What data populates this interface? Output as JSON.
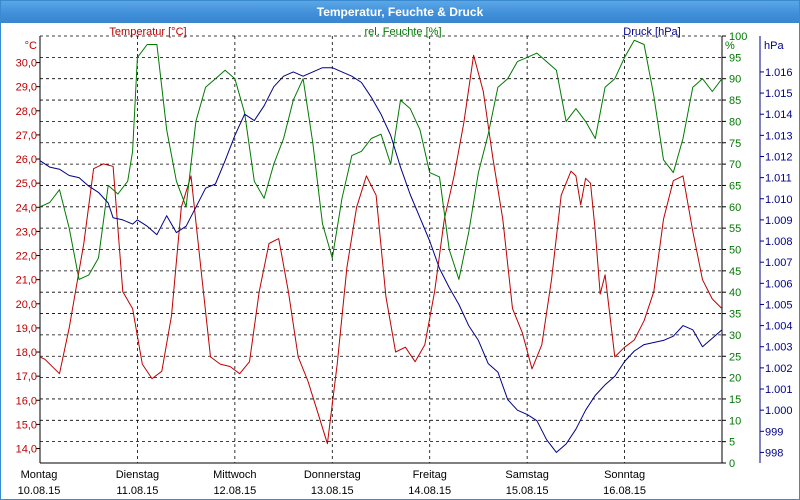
{
  "window": {
    "title": "Temperatur, Feuchte & Druck"
  },
  "colors": {
    "temperature": "#c00000",
    "humidity": "#007a00",
    "pressure": "#00008b",
    "title_bar": "#3f8ed8",
    "grid": "#000000"
  },
  "chart_data": {
    "type": "line",
    "title": "Temperatur, Feuchte & Druck",
    "grid": "on (dashed)",
    "x_range": [
      "10.08.15 00:00",
      "17.08.15 00:00"
    ],
    "x_ticks": [
      {
        "day": "Montag",
        "date": "10.08.15"
      },
      {
        "day": "Dienstag",
        "date": "11.08.15"
      },
      {
        "day": "Mittwoch",
        "date": "12.08.15"
      },
      {
        "day": "Donnerstag",
        "date": "13.08.15"
      },
      {
        "day": "Freitag",
        "date": "14.08.15"
      },
      {
        "day": "Samstag",
        "date": "15.08.15"
      },
      {
        "day": "Sonntag",
        "date": "16.08.15"
      }
    ],
    "axes": {
      "temperature": {
        "label": "Temperatur [°C]",
        "unit": "°C",
        "side": "left",
        "range": [
          13.4,
          31.1
        ],
        "ticks": [
          "14,0",
          "15,0",
          "16,0",
          "17,0",
          "18,0",
          "19,0",
          "20,0",
          "21,0",
          "22,0",
          "23,0",
          "24,0",
          "25,0",
          "26,0",
          "27,0",
          "28,0",
          "29,0",
          "30,0"
        ]
      },
      "humidity": {
        "label": "rel. Feuchte [%]",
        "unit": "%",
        "side": "right",
        "range": [
          0,
          100
        ],
        "ticks": [
          "0",
          "5",
          "10",
          "15",
          "20",
          "25",
          "30",
          "35",
          "40",
          "45",
          "50",
          "55",
          "60",
          "65",
          "70",
          "75",
          "80",
          "85",
          "90",
          "95",
          "100"
        ]
      },
      "pressure": {
        "label": "Druck [hPa]",
        "unit": "hPa",
        "side": "right",
        "range": [
          997.5,
          1017.7
        ],
        "ticks": [
          "998",
          "999",
          "1.000",
          "1.001",
          "1.002",
          "1.003",
          "1.004",
          "1.005",
          "1.006",
          "1.007",
          "1.008",
          "1.009",
          "1.010",
          "1.011",
          "1.012",
          "1.013",
          "1.014",
          "1.015",
          "1.016"
        ]
      }
    },
    "series": [
      {
        "name": "Temperatur [°C]",
        "axis": "temperature",
        "x_days": [
          0,
          0.05,
          0.2,
          0.3,
          0.45,
          0.55,
          0.65,
          0.75,
          0.85,
          0.95,
          1.05,
          1.15,
          1.25,
          1.35,
          1.45,
          1.55,
          1.65,
          1.75,
          1.85,
          1.95,
          2.05,
          2.15,
          2.25,
          2.35,
          2.45,
          2.55,
          2.65,
          2.75,
          2.85,
          2.95,
          3.05,
          3.15,
          3.25,
          3.35,
          3.45,
          3.55,
          3.65,
          3.75,
          3.85,
          3.95,
          4.05,
          4.15,
          4.25,
          4.35,
          4.45,
          4.55,
          4.65,
          4.75,
          4.85,
          4.95,
          5.05,
          5.15,
          5.25,
          5.35,
          5.45,
          5.5,
          5.55,
          5.6,
          5.65,
          5.7,
          5.75,
          5.8,
          5.9,
          6.0,
          6.1,
          6.2,
          6.3,
          6.4,
          6.5,
          6.6,
          6.7,
          6.8,
          6.9,
          7.0
        ],
        "values": [
          17.8,
          17.7,
          17.1,
          19.0,
          22.5,
          25.6,
          25.8,
          25.7,
          20.5,
          19.8,
          17.5,
          16.9,
          17.2,
          19.5,
          24.0,
          25.3,
          21.5,
          17.8,
          17.5,
          17.4,
          17.1,
          17.6,
          20.5,
          22.5,
          22.7,
          20.5,
          17.8,
          16.8,
          15.5,
          14.2,
          17.5,
          21.5,
          24.0,
          25.3,
          24.5,
          20.3,
          18.0,
          18.2,
          17.6,
          18.3,
          20.5,
          23.5,
          25.3,
          27.5,
          30.3,
          28.8,
          26.0,
          23.5,
          19.8,
          18.8,
          17.3,
          18.3,
          21.0,
          24.5,
          25.5,
          25.3,
          24.1,
          25.2,
          25.0,
          23.0,
          20.4,
          21.2,
          17.8,
          18.2,
          18.5,
          19.3,
          20.5,
          23.5,
          25.1,
          25.3,
          23.0,
          21.0,
          20.2,
          19.8
        ]
      },
      {
        "name": "rel. Feuchte [%]",
        "axis": "humidity",
        "x_days": [
          0,
          0.1,
          0.2,
          0.3,
          0.4,
          0.5,
          0.6,
          0.7,
          0.8,
          0.9,
          0.95,
          1.0,
          1.1,
          1.2,
          1.3,
          1.4,
          1.5,
          1.6,
          1.7,
          1.8,
          1.9,
          2.0,
          2.1,
          2.2,
          2.3,
          2.4,
          2.5,
          2.6,
          2.7,
          2.8,
          2.9,
          3.0,
          3.1,
          3.2,
          3.3,
          3.4,
          3.5,
          3.6,
          3.7,
          3.8,
          3.9,
          4.0,
          4.1,
          4.2,
          4.3,
          4.4,
          4.5,
          4.6,
          4.7,
          4.8,
          4.9,
          5.0,
          5.1,
          5.2,
          5.3,
          5.4,
          5.5,
          5.6,
          5.7,
          5.8,
          5.9,
          6.0,
          6.1,
          6.2,
          6.3,
          6.4,
          6.5,
          6.6,
          6.7,
          6.8,
          6.9,
          7.0
        ],
        "values": [
          60,
          61,
          64,
          55,
          43,
          44,
          48,
          65,
          63,
          66,
          73,
          95,
          98,
          98,
          78,
          66,
          60,
          80,
          88,
          90,
          92,
          90,
          82,
          66,
          62,
          70,
          76,
          85,
          90,
          75,
          56,
          48,
          62,
          72,
          73,
          76,
          77,
          70,
          85,
          83,
          78,
          68,
          67,
          50,
          43,
          54,
          68,
          77,
          88,
          90,
          94,
          95,
          96,
          94,
          92,
          80,
          83,
          80,
          76,
          88,
          90,
          95,
          99,
          98,
          86,
          71,
          68,
          76,
          88,
          90,
          87,
          90
        ]
      },
      {
        "name": "Druck [hPa]",
        "axis": "pressure",
        "x_days": [
          0,
          0.1,
          0.2,
          0.3,
          0.4,
          0.5,
          0.6,
          0.7,
          0.75,
          0.85,
          0.95,
          1.0,
          1.1,
          1.2,
          1.3,
          1.4,
          1.5,
          1.6,
          1.7,
          1.8,
          1.9,
          2.0,
          2.1,
          2.2,
          2.3,
          2.4,
          2.5,
          2.6,
          2.7,
          2.8,
          2.9,
          3.0,
          3.1,
          3.2,
          3.3,
          3.4,
          3.5,
          3.6,
          3.7,
          3.8,
          3.9,
          4.0,
          4.1,
          4.2,
          4.3,
          4.4,
          4.5,
          4.6,
          4.7,
          4.8,
          4.9,
          5.0,
          5.1,
          5.2,
          5.3,
          5.4,
          5.5,
          5.6,
          5.7,
          5.8,
          5.9,
          6.0,
          6.1,
          6.2,
          6.3,
          6.4,
          6.5,
          6.6,
          6.7,
          6.8,
          6.9,
          7.0
        ],
        "values": [
          1011.8,
          1011.5,
          1011.4,
          1011.1,
          1011.0,
          1010.6,
          1010.3,
          1009.8,
          1009.1,
          1009.0,
          1008.8,
          1009.0,
          1008.7,
          1008.3,
          1009.2,
          1008.4,
          1008.7,
          1009.6,
          1010.5,
          1010.7,
          1011.8,
          1013.0,
          1014.0,
          1013.7,
          1014.4,
          1015.3,
          1015.8,
          1016.0,
          1015.8,
          1016.0,
          1016.2,
          1016.2,
          1016.0,
          1015.8,
          1015.5,
          1014.8,
          1014.0,
          1013.0,
          1011.5,
          1010.2,
          1009.1,
          1008.0,
          1006.7,
          1005.8,
          1005.0,
          1004.0,
          1003.3,
          1002.2,
          1001.8,
          1000.5,
          1000.0,
          999.8,
          999.5,
          998.6,
          998.0,
          998.4,
          999.1,
          1000.0,
          1000.7,
          1001.2,
          1001.6,
          1002.3,
          1002.8,
          1003.1,
          1003.2,
          1003.3,
          1003.5,
          1004.0,
          1003.8,
          1003.0,
          1003.4,
          1003.8
        ]
      }
    ]
  }
}
